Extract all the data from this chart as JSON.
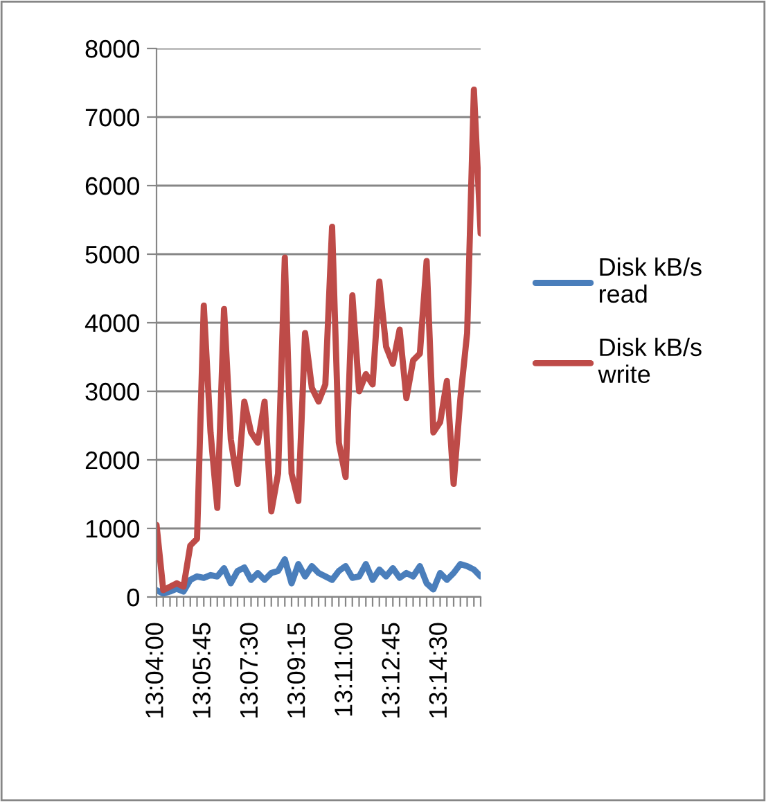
{
  "chart_data": {
    "type": "line",
    "categories": [
      "13:04:00",
      null,
      null,
      null,
      null,
      null,
      null,
      "13:05:45",
      null,
      null,
      null,
      null,
      null,
      null,
      "13:07:30",
      null,
      null,
      null,
      null,
      null,
      null,
      "13:09:15",
      null,
      null,
      null,
      null,
      null,
      null,
      "13:11:00",
      null,
      null,
      null,
      null,
      null,
      null,
      "13:12:45",
      null,
      null,
      null,
      null,
      null,
      null,
      "13:14:30",
      null,
      null,
      null,
      null,
      null,
      null
    ],
    "series": [
      {
        "name": "Disk kB/s read",
        "color": "#4a7ebb",
        "values": [
          100,
          50,
          80,
          120,
          80,
          250,
          300,
          280,
          320,
          300,
          420,
          200,
          380,
          430,
          250,
          350,
          250,
          350,
          380,
          550,
          200,
          480,
          300,
          450,
          350,
          300,
          250,
          380,
          450,
          280,
          300,
          480,
          250,
          400,
          300,
          420,
          280,
          350,
          300,
          450,
          200,
          110,
          350,
          250,
          350,
          480,
          450,
          400,
          300
        ]
      },
      {
        "name": "Disk kB/s write",
        "color": "#be4b48",
        "values": [
          1050,
          100,
          150,
          200,
          150,
          750,
          850,
          4250,
          2400,
          1300,
          4200,
          2300,
          1650,
          2850,
          2400,
          2250,
          2850,
          1250,
          1800,
          4950,
          1800,
          1400,
          3850,
          3050,
          2850,
          3100,
          5400,
          2250,
          1750,
          4400,
          3000,
          3250,
          3100,
          4600,
          3650,
          3400,
          3900,
          2900,
          3450,
          3550,
          4900,
          2400,
          2550,
          3150,
          1650,
          2900,
          3850,
          7400,
          5300
        ]
      }
    ],
    "ylim": [
      0,
      8000
    ],
    "yticks": [
      0,
      1000,
      2000,
      3000,
      4000,
      5000,
      6000,
      7000,
      8000
    ],
    "grid": "y",
    "legend": "right"
  }
}
